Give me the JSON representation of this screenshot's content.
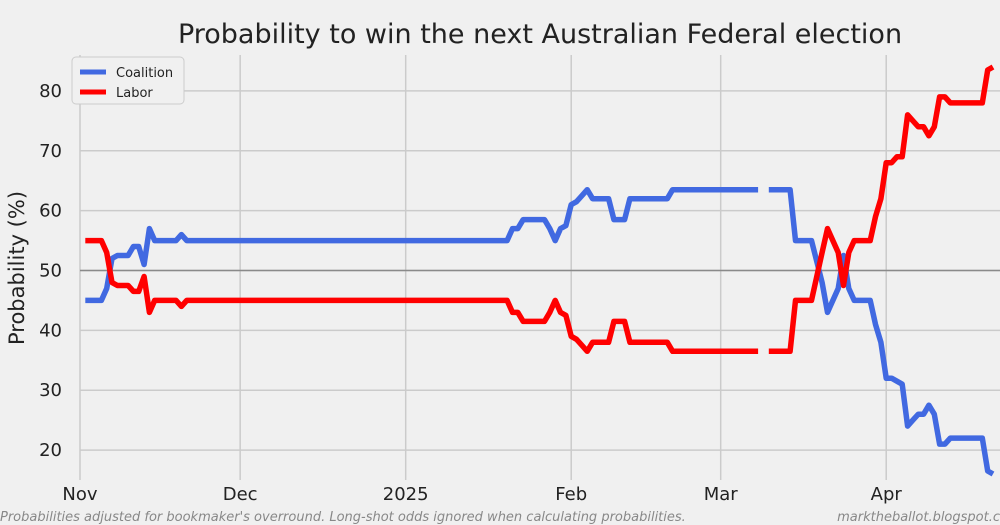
{
  "chart_data": {
    "type": "line",
    "title": "Probability to win the next Australian Federal election",
    "ylabel": "Probability (%)",
    "xlabel": "",
    "ylim": [
      15,
      86
    ],
    "yticks": [
      20,
      30,
      40,
      50,
      60,
      70,
      80
    ],
    "x_tick_labels": [
      {
        "label": "Nov",
        "day": 0
      },
      {
        "label": "Dec",
        "day": 30
      },
      {
        "label": "2025",
        "day": 61
      },
      {
        "label": "Feb",
        "day": 92
      },
      {
        "label": "Mar",
        "day": 120
      },
      {
        "label": "Apr",
        "day": 151
      }
    ],
    "reference_line": 50,
    "grid": true,
    "legend_position": "top-left",
    "series": [
      {
        "name": "Coalition",
        "color": "#4169e1",
        "points": [
          [
            1,
            45
          ],
          [
            4,
            45
          ],
          [
            5,
            47
          ],
          [
            6,
            52
          ],
          [
            7,
            52.5
          ],
          [
            9,
            52.5
          ],
          [
            10,
            54
          ],
          [
            11,
            54
          ],
          [
            12,
            51
          ],
          [
            13,
            57
          ],
          [
            14,
            55
          ],
          [
            18,
            55
          ],
          [
            19,
            56
          ],
          [
            20,
            55
          ],
          [
            40,
            55
          ],
          [
            60,
            55
          ],
          [
            80,
            55
          ],
          [
            81,
            57
          ],
          [
            82,
            57
          ],
          [
            83,
            58.5
          ],
          [
            87,
            58.5
          ],
          [
            88,
            57
          ],
          [
            89,
            55
          ],
          [
            90,
            57
          ],
          [
            91,
            57.5
          ],
          [
            92,
            61
          ],
          [
            93,
            61.5
          ],
          [
            94,
            62.5
          ],
          [
            95,
            63.5
          ],
          [
            96,
            62
          ],
          [
            99,
            62
          ],
          [
            100,
            58.5
          ],
          [
            102,
            58.5
          ],
          [
            103,
            62
          ],
          [
            110,
            62
          ],
          [
            111,
            63.5
          ],
          [
            127,
            63.5
          ],
          null,
          [
            129,
            63.5
          ],
          [
            133,
            63.5
          ],
          [
            134,
            55
          ],
          [
            137,
            55
          ],
          [
            139,
            48
          ],
          [
            140,
            43
          ],
          [
            142,
            47
          ],
          [
            143,
            52.5
          ],
          [
            144,
            47
          ],
          [
            145,
            45
          ],
          [
            148,
            45
          ],
          [
            149,
            41
          ],
          [
            150,
            38
          ],
          [
            151,
            32
          ],
          [
            152,
            32
          ],
          [
            153,
            31.5
          ],
          [
            154,
            31
          ],
          [
            155,
            24
          ],
          [
            156,
            25
          ],
          [
            157,
            26
          ],
          [
            158,
            26
          ],
          [
            159,
            27.5
          ],
          [
            160,
            26
          ],
          [
            161,
            21
          ],
          [
            162,
            21
          ],
          [
            163,
            22
          ],
          [
            169,
            22
          ],
          [
            170,
            16.5
          ],
          [
            171,
            16
          ]
        ]
      },
      {
        "name": "Labor",
        "color": "#ff0000",
        "points": [
          [
            1,
            55
          ],
          [
            4,
            55
          ],
          [
            5,
            53
          ],
          [
            6,
            48
          ],
          [
            7,
            47.5
          ],
          [
            9,
            47.5
          ],
          [
            10,
            46.5
          ],
          [
            11,
            46.5
          ],
          [
            12,
            49
          ],
          [
            13,
            43
          ],
          [
            14,
            45
          ],
          [
            18,
            45
          ],
          [
            19,
            44
          ],
          [
            20,
            45
          ],
          [
            40,
            45
          ],
          [
            60,
            45
          ],
          [
            80,
            45
          ],
          [
            81,
            43
          ],
          [
            82,
            43
          ],
          [
            83,
            41.5
          ],
          [
            87,
            41.5
          ],
          [
            88,
            43
          ],
          [
            89,
            45
          ],
          [
            90,
            43
          ],
          [
            91,
            42.5
          ],
          [
            92,
            39
          ],
          [
            93,
            38.5
          ],
          [
            94,
            37.5
          ],
          [
            95,
            36.5
          ],
          [
            96,
            38
          ],
          [
            99,
            38
          ],
          [
            100,
            41.5
          ],
          [
            102,
            41.5
          ],
          [
            103,
            38
          ],
          [
            110,
            38
          ],
          [
            111,
            36.5
          ],
          [
            127,
            36.5
          ],
          null,
          [
            129,
            36.5
          ],
          [
            133,
            36.5
          ],
          [
            134,
            45
          ],
          [
            137,
            45
          ],
          [
            139,
            53
          ],
          [
            140,
            57
          ],
          [
            142,
            53
          ],
          [
            143,
            47.5
          ],
          [
            144,
            53
          ],
          [
            145,
            55
          ],
          [
            148,
            55
          ],
          [
            149,
            59
          ],
          [
            150,
            62
          ],
          [
            151,
            68
          ],
          [
            152,
            68
          ],
          [
            153,
            69
          ],
          [
            154,
            69
          ],
          [
            155,
            76
          ],
          [
            156,
            75
          ],
          [
            157,
            74
          ],
          [
            158,
            74
          ],
          [
            159,
            72.5
          ],
          [
            160,
            74
          ],
          [
            161,
            79
          ],
          [
            162,
            79
          ],
          [
            163,
            78
          ],
          [
            169,
            78
          ],
          [
            170,
            83.5
          ],
          [
            171,
            84
          ]
        ]
      }
    ]
  },
  "footer": {
    "note": "Probabilities adjusted for bookmaker's overround. Long-shot odds ignored when calculating probabilities.",
    "source": "marktheballot.blogspot.c"
  }
}
